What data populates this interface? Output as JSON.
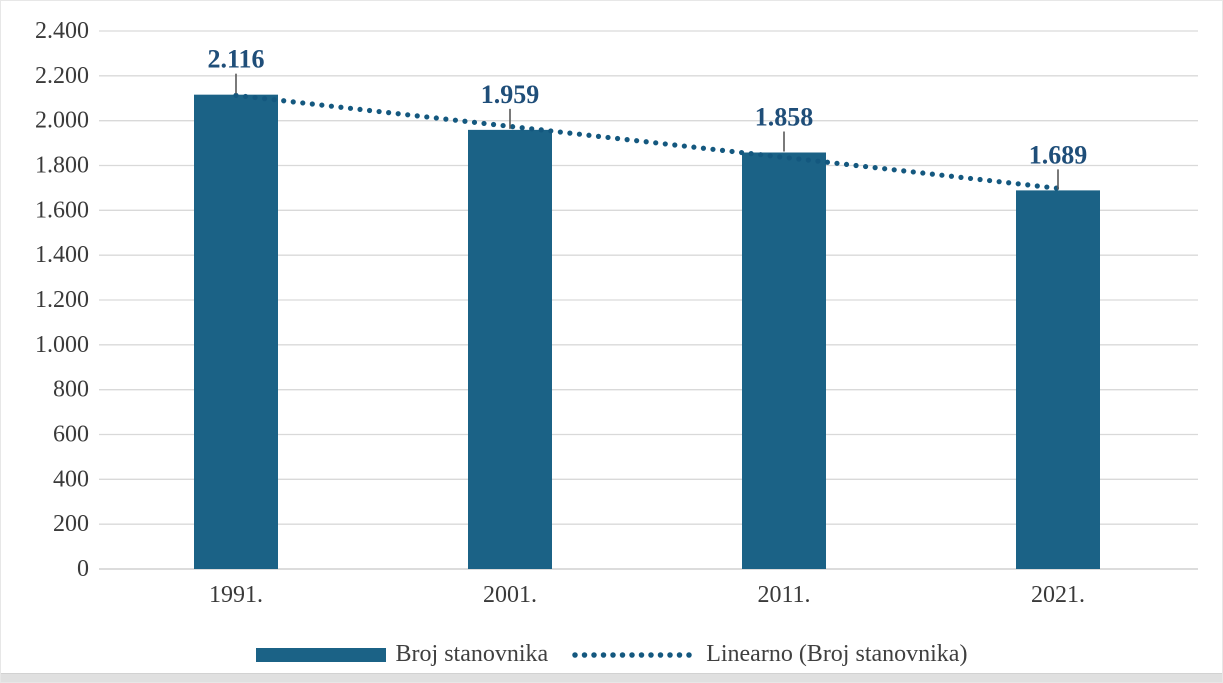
{
  "chart_data": {
    "type": "bar",
    "title": "",
    "xlabel": "",
    "ylabel": "",
    "categories": [
      "1991.",
      "2001.",
      "2011.",
      "2021."
    ],
    "series": [
      {
        "name": "Broj stanovnika",
        "values": [
          2116,
          1959,
          1858,
          1689
        ]
      }
    ],
    "data_labels": [
      "2.116",
      "1.959",
      "1.858",
      "1.689"
    ],
    "y_axis": {
      "min": 0,
      "max": 2400,
      "ticks": [
        {
          "label": "2.400",
          "value": 2400
        },
        {
          "label": "2.200",
          "value": 2200
        },
        {
          "label": "2.000",
          "value": 2000
        },
        {
          "label": "1.800",
          "value": 1800
        },
        {
          "label": "1.600",
          "value": 1600
        },
        {
          "label": "1.400",
          "value": 1400
        },
        {
          "label": "1.200",
          "value": 1200
        },
        {
          "label": "1.000",
          "value": 1000
        },
        {
          "label": "800",
          "value": 800
        },
        {
          "label": "600",
          "value": 600
        },
        {
          "label": "400",
          "value": 400
        },
        {
          "label": "200",
          "value": 200
        },
        {
          "label": "0",
          "value": 0
        }
      ]
    },
    "grid": true,
    "trendline": {
      "kind": "linear",
      "on": "Broj stanovnika",
      "style": "dotted"
    },
    "legend": {
      "position": "bottom",
      "items": [
        {
          "label": "Broj stanovnika",
          "swatch": "bar"
        },
        {
          "label": "Linearno (Broj stanovnika)",
          "swatch": "dotted-line"
        }
      ]
    },
    "colors": {
      "bar": "#1b6286",
      "trendline": "#14587f",
      "data_label": "#1f4e79",
      "axis_text": "#3a3a3a",
      "legend_text": "#404040",
      "gridline": "#d9d9d9",
      "axis_line": "#c6c6c6",
      "leader_line": "#595959",
      "border": "#e7e7e7",
      "bottom_strip": "#e0e0e0"
    }
  }
}
